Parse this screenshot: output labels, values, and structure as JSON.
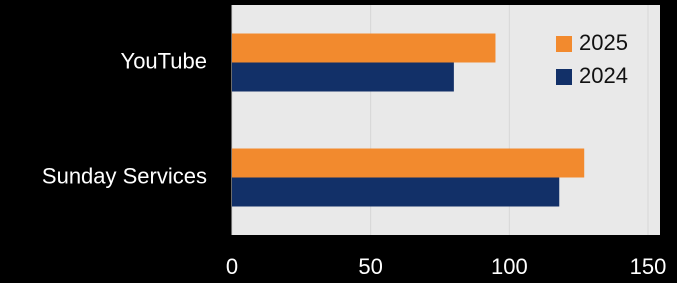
{
  "chart_data": {
    "type": "bar",
    "orientation": "horizontal",
    "categories": [
      "YouTube",
      "Sunday Services"
    ],
    "series": [
      {
        "name": "2025",
        "color": "#f28a2e",
        "values": [
          95,
          127
        ]
      },
      {
        "name": "2024",
        "color": "#123068",
        "values": [
          80,
          118
        ]
      }
    ],
    "xlim": [
      0,
      150
    ],
    "xticks": [
      0,
      50,
      100,
      150
    ],
    "grid": true,
    "legend": "upper right"
  }
}
